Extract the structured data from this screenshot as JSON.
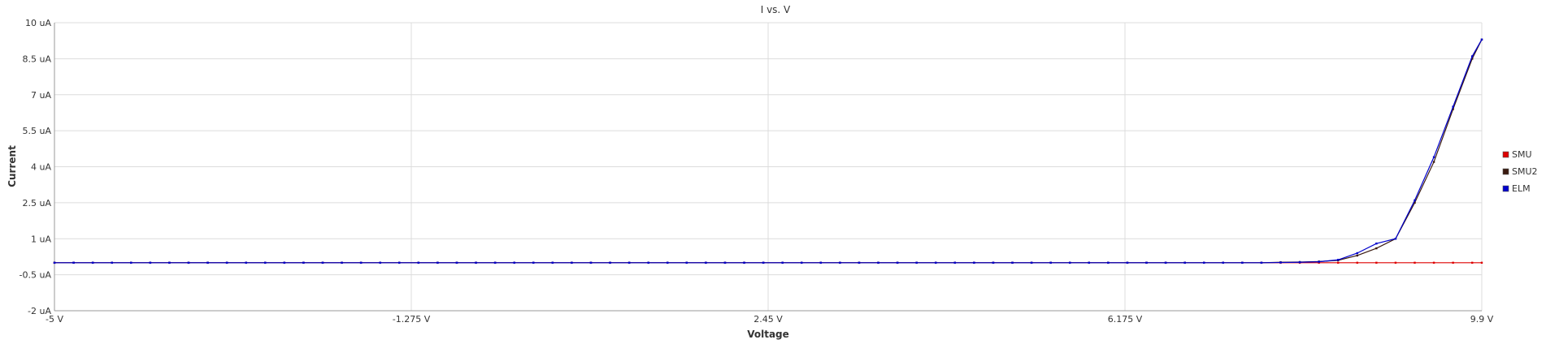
{
  "chart_data": {
    "type": "line",
    "title": "I vs. V",
    "xlabel": "Voltage",
    "ylabel": "Current",
    "xlim": [
      -5,
      9.9
    ],
    "ylim": [
      -2,
      10
    ],
    "x_unit": "V",
    "y_unit": "uA",
    "x_ticks": [
      -5,
      -1.275,
      2.45,
      6.175,
      9.9
    ],
    "x_tick_labels": [
      "-5 V",
      "-1.275 V",
      "2.45 V",
      "6.175 V",
      "9.9 V"
    ],
    "y_ticks": [
      -2,
      -0.5,
      1,
      2.5,
      4,
      5.5,
      7,
      8.5,
      10
    ],
    "y_tick_labels": [
      "-2 uA",
      "-0.5 uA",
      "1 uA",
      "2.5 uA",
      "4 uA",
      "5.5 uA",
      "7 uA",
      "8.5 uA",
      "10 uA"
    ],
    "grid": true,
    "legend_position": "right",
    "x": [
      -5,
      -4.8,
      -4.6,
      -4.4,
      -4.2,
      -4,
      -3.8,
      -3.6,
      -3.4,
      -3.2,
      -3,
      -2.8,
      -2.6,
      -2.4,
      -2.2,
      -2,
      -1.8,
      -1.6,
      -1.4,
      -1.2,
      -1,
      -0.8,
      -0.6,
      -0.4,
      -0.2,
      0,
      0.2,
      0.4,
      0.6,
      0.8,
      1,
      1.2,
      1.4,
      1.6,
      1.8,
      2,
      2.2,
      2.4,
      2.6,
      2.8,
      3,
      3.2,
      3.4,
      3.6,
      3.8,
      4,
      4.2,
      4.4,
      4.6,
      4.8,
      5,
      5.2,
      5.4,
      5.6,
      5.8,
      6,
      6.2,
      6.4,
      6.6,
      6.8,
      7,
      7.2,
      7.4,
      7.6,
      7.8,
      8,
      8.2,
      8.4,
      8.6,
      8.8,
      9,
      9.2,
      9.4,
      9.6,
      9.8,
      9.9
    ],
    "series": [
      {
        "name": "SMU",
        "color": "#dd0000",
        "values": [
          0,
          0,
          0,
          0,
          0,
          0,
          0,
          0,
          0,
          0,
          0,
          0,
          0,
          0,
          0,
          0,
          0,
          0,
          0,
          0,
          0,
          0,
          0,
          0,
          0,
          0,
          0,
          0,
          0,
          0,
          0,
          0,
          0,
          0,
          0,
          0,
          0,
          0,
          0,
          0,
          0,
          0,
          0,
          0,
          0,
          0,
          0,
          0,
          0,
          0,
          0,
          0,
          0,
          0,
          0,
          0,
          0,
          0,
          0,
          0,
          0,
          0,
          0,
          0,
          0,
          0,
          0,
          0,
          0,
          0,
          0,
          0,
          0,
          0,
          0,
          0
        ]
      },
      {
        "name": "SMU2",
        "color": "#3a1a10",
        "values": [
          0,
          0,
          0,
          0,
          0,
          0,
          0,
          0,
          0,
          0,
          0,
          0,
          0,
          0,
          0,
          0,
          0,
          0,
          0,
          0,
          0,
          0,
          0,
          0,
          0,
          0,
          0,
          0,
          0,
          0,
          0,
          0,
          0,
          0,
          0,
          0,
          0,
          0,
          0,
          0,
          0,
          0,
          0,
          0,
          0,
          0,
          0,
          0,
          0,
          0,
          0,
          0,
          0,
          0,
          0,
          0,
          0,
          0,
          0,
          0,
          0,
          0,
          0,
          0,
          0.02,
          0.03,
          0.05,
          0.1,
          0.3,
          0.6,
          1.0,
          2.5,
          4.2,
          6.4,
          8.5,
          9.3
        ]
      },
      {
        "name": "ELM",
        "color": "#0000cc",
        "values": [
          0,
          0,
          0,
          0,
          0,
          0,
          0,
          0,
          0,
          0,
          0,
          0,
          0,
          0,
          0,
          0,
          0,
          0,
          0,
          0,
          0,
          0,
          0,
          0,
          0,
          0,
          0,
          0,
          0,
          0,
          0,
          0,
          0,
          0,
          0,
          0,
          0,
          0,
          0,
          0,
          0,
          0,
          0,
          0,
          0,
          0,
          0,
          0,
          0,
          0,
          0,
          0,
          0,
          0,
          0,
          0,
          0,
          0,
          0,
          0,
          0,
          0,
          0,
          0,
          0.01,
          0.02,
          0.04,
          0.12,
          0.4,
          0.8,
          1.0,
          2.6,
          4.4,
          6.5,
          8.6,
          9.3
        ]
      }
    ]
  }
}
